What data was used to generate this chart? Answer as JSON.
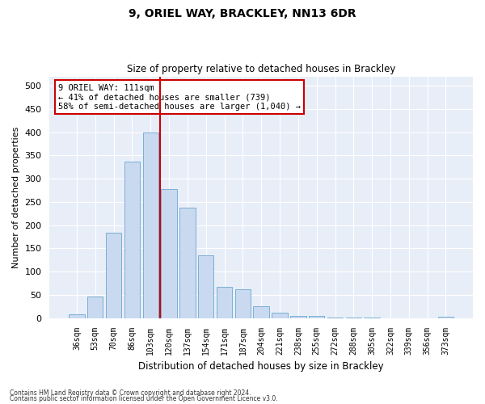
{
  "title1": "9, ORIEL WAY, BRACKLEY, NN13 6DR",
  "title2": "Size of property relative to detached houses in Brackley",
  "xlabel": "Distribution of detached houses by size in Brackley",
  "ylabel": "Number of detached properties",
  "bar_labels": [
    "36sqm",
    "53sqm",
    "70sqm",
    "86sqm",
    "103sqm",
    "120sqm",
    "137sqm",
    "154sqm",
    "171sqm",
    "187sqm",
    "204sqm",
    "221sqm",
    "238sqm",
    "255sqm",
    "272sqm",
    "288sqm",
    "305sqm",
    "322sqm",
    "339sqm",
    "356sqm",
    "373sqm"
  ],
  "bar_heights": [
    8,
    46,
    184,
    337,
    400,
    277,
    238,
    135,
    67,
    62,
    25,
    11,
    5,
    4,
    2,
    1,
    1,
    0,
    0,
    0,
    3
  ],
  "bar_color": "#c9d9f0",
  "bar_edge_color": "#7bafd4",
  "vline_x": 4.5,
  "vline_color": "#cc0000",
  "annotation_text": "9 ORIEL WAY: 111sqm\n← 41% of detached houses are smaller (739)\n58% of semi-detached houses are larger (1,040) →",
  "annotation_box_color": "#ffffff",
  "annotation_box_edge": "#cc0000",
  "ylim": [
    0,
    520
  ],
  "yticks": [
    0,
    50,
    100,
    150,
    200,
    250,
    300,
    350,
    400,
    450,
    500
  ],
  "bg_color": "#e8eef8",
  "footer_line1": "Contains HM Land Registry data © Crown copyright and database right 2024.",
  "footer_line2": "Contains public sector information licensed under the Open Government Licence v3.0."
}
